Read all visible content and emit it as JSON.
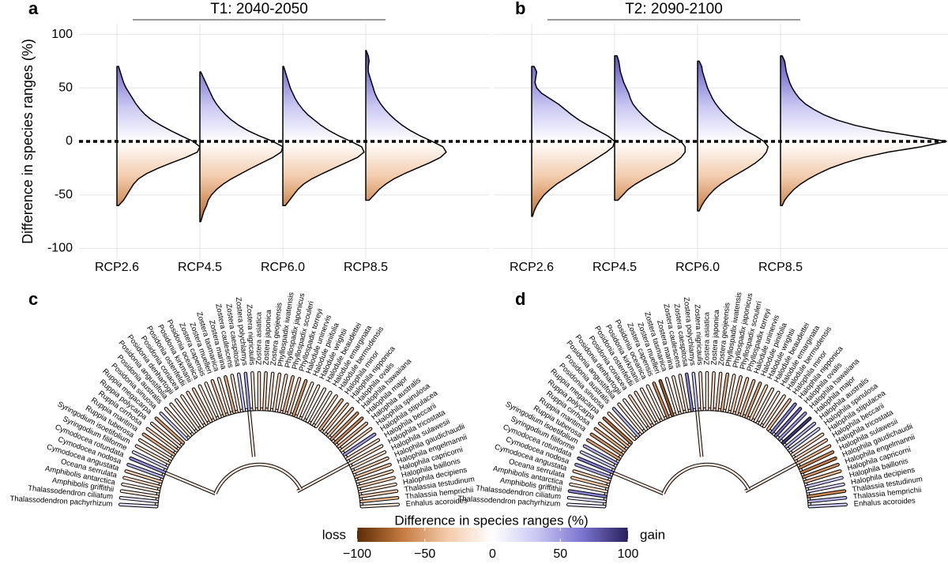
{
  "chart_data": [
    {
      "type": "violin",
      "label": "a",
      "title": "T1: 2040-2050",
      "ylabel": "Difference in species ranges (%)",
      "categories": [
        "RCP2.6",
        "RCP4.5",
        "RCP6.0",
        "RCP8.5"
      ],
      "ylim": [
        -110,
        110
      ],
      "yticks": [
        100,
        50,
        0,
        -50,
        -100
      ],
      "grid": true,
      "y": [
        -80,
        -75,
        -70,
        -65,
        -60,
        -55,
        -50,
        -45,
        -40,
        -35,
        -30,
        -25,
        -20,
        -15,
        -10,
        -5,
        0,
        5,
        10,
        15,
        20,
        25,
        30,
        35,
        40,
        45,
        50,
        55,
        60,
        65,
        70,
        75,
        80,
        85
      ],
      "densities": [
        [
          null,
          null,
          null,
          null,
          0.02,
          0.08,
          0.12,
          0.16,
          0.2,
          0.26,
          0.36,
          0.5,
          0.66,
          0.83,
          0.97,
          1.0,
          0.92,
          0.78,
          0.65,
          0.53,
          0.42,
          0.34,
          0.28,
          0.23,
          0.19,
          0.15,
          0.11,
          0.08,
          0.06,
          0.04,
          0.02,
          null,
          null,
          null
        ],
        [
          null,
          0.01,
          0.03,
          0.05,
          0.08,
          0.1,
          0.14,
          0.2,
          0.28,
          0.38,
          0.5,
          0.62,
          0.75,
          0.88,
          0.98,
          1.0,
          0.88,
          0.72,
          0.58,
          0.47,
          0.38,
          0.31,
          0.25,
          0.2,
          0.16,
          0.13,
          0.1,
          0.07,
          0.04,
          0.01,
          null,
          null,
          null,
          null
        ],
        [
          null,
          null,
          null,
          null,
          0.03,
          0.08,
          0.13,
          0.18,
          0.25,
          0.35,
          0.48,
          0.62,
          0.76,
          0.9,
          0.98,
          0.95,
          0.82,
          0.68,
          0.56,
          0.46,
          0.38,
          0.3,
          0.24,
          0.19,
          0.15,
          0.12,
          0.09,
          0.07,
          0.05,
          0.03,
          0.01,
          null,
          null,
          null
        ],
        [
          null,
          null,
          null,
          null,
          null,
          0.04,
          0.1,
          0.16,
          0.24,
          0.34,
          0.47,
          0.62,
          0.77,
          0.9,
          0.97,
          0.93,
          0.8,
          0.66,
          0.54,
          0.44,
          0.36,
          0.29,
          0.23,
          0.18,
          0.14,
          0.11,
          0.09,
          0.07,
          0.05,
          0.03,
          0.03,
          0.04,
          0.03,
          0.005
        ]
      ]
    },
    {
      "type": "violin",
      "label": "b",
      "title": "T2: 2090-2100",
      "categories": [
        "RCP2.6",
        "RCP4.5",
        "RCP6.0",
        "RCP8.5"
      ],
      "ylim": [
        -110,
        110
      ],
      "yticks": [
        100,
        50,
        0,
        -50,
        -100
      ],
      "grid": true,
      "y": [
        -80,
        -75,
        -70,
        -65,
        -60,
        -55,
        -50,
        -45,
        -40,
        -35,
        -30,
        -25,
        -20,
        -15,
        -10,
        -5,
        0,
        5,
        10,
        15,
        20,
        25,
        30,
        35,
        40,
        45,
        50,
        55,
        60,
        65,
        70,
        75,
        80,
        85
      ],
      "densities": [
        [
          null,
          null,
          0.01,
          0.03,
          0.06,
          0.1,
          0.15,
          0.22,
          0.3,
          0.4,
          0.5,
          0.6,
          0.7,
          0.8,
          0.9,
          0.98,
          1.0,
          0.92,
          0.8,
          0.68,
          0.57,
          0.48,
          0.4,
          0.32,
          0.22,
          0.12,
          0.06,
          0.04,
          0.05,
          0.06,
          0.03,
          null,
          null,
          null
        ],
        [
          null,
          null,
          null,
          null,
          null,
          0.04,
          0.1,
          0.16,
          0.25,
          0.36,
          0.48,
          0.6,
          0.72,
          0.8,
          0.85,
          0.85,
          0.8,
          0.7,
          0.58,
          0.48,
          0.4,
          0.33,
          0.27,
          0.22,
          0.19,
          0.17,
          0.14,
          0.11,
          0.09,
          0.07,
          0.06,
          0.05,
          0.03,
          null
        ],
        [
          null,
          null,
          null,
          0.02,
          0.05,
          0.09,
          0.14,
          0.2,
          0.28,
          0.38,
          0.49,
          0.6,
          0.7,
          0.78,
          0.83,
          0.85,
          0.8,
          0.7,
          0.58,
          0.48,
          0.4,
          0.33,
          0.27,
          0.22,
          0.18,
          0.15,
          0.12,
          0.1,
          0.08,
          0.06,
          0.05,
          0.02,
          null,
          null
        ],
        [
          null,
          null,
          null,
          null,
          0.02,
          0.05,
          0.1,
          0.16,
          0.24,
          0.34,
          0.46,
          0.6,
          0.78,
          1.0,
          1.3,
          1.7,
          2.0,
          1.6,
          1.2,
          0.9,
          0.68,
          0.52,
          0.4,
          0.3,
          0.23,
          0.18,
          0.14,
          0.11,
          0.09,
          0.07,
          0.06,
          0.05,
          0.02,
          null
        ]
      ]
    }
  ],
  "trees": {
    "species": [
      "Thalassodendron pachyrhizum",
      "Thalassodendron ciliatum",
      "Amphibolis griffithii",
      "Amphibolis antarctica",
      "Oceana serrulata",
      "Cymodocea angustata",
      "Cymodocea nodosa",
      "Cymodocea rotundata",
      "Syringodium filiforme",
      "Syringodium isoetifolium",
      "Ruppia tuberosa",
      "Ruppia maritima",
      "Ruppia cirrhosa",
      "Ruppia polycarpa",
      "Ruppia megacarpa",
      "Posidonia sinuosa",
      "Posidonia australis",
      "Posidonia angustifolia",
      "Posidonia denhartogii",
      "Posidonia coriacea",
      "Posidonia ostenfeldii",
      "Posidonia kirkmanii",
      "Posidonia oceanica",
      "Zostera capensis",
      "Zostera muelleri",
      "Zostera tasmanica",
      "Zostera marina",
      "Zostera caulescens",
      "Zostera caespitosa",
      "Zostera polychlamys",
      "Zostera nigricaulis",
      "Zostera asiatica",
      "Zostera japonica",
      "Zostera geojeensis",
      "Phyllospadix iwatensis",
      "Phyllospadix japonicus",
      "Phyllospadix scouleri",
      "Phyllospadix torreyi",
      "Halodule uninervis",
      "Halodule pinifolia",
      "Halodule wrightii",
      "Halodule beaudettei",
      "Halodule emarginata",
      "Halodule bermudensis",
      "Halophila minor",
      "Halophila nipponica",
      "Halophila ovalis",
      "Halophila hawaiiana",
      "Halophila major",
      "Halophila australis",
      "Halophila spinulosa",
      "Halophila stipulacea",
      "Halophila beccarii",
      "Halophila tricostata",
      "Halophila sulawesii",
      "Halophila gaudichaudii",
      "Halophila engelmannii",
      "Halophila capricorni",
      "Halophila baillonis",
      "Halophila decipiens",
      "Thalassia testudinum",
      "Thalassia hemprichii",
      "Enhalus acoroides"
    ],
    "panels": [
      {
        "label": "c",
        "values": [
          20,
          15,
          -15,
          -15,
          -25,
          -30,
          40,
          55,
          25,
          -20,
          -20,
          -45,
          -30,
          -25,
          -50,
          30,
          -20,
          -15,
          -20,
          -15,
          -25,
          -30,
          -20,
          -15,
          -35,
          -20,
          -45,
          -20,
          30,
          45,
          -15,
          -20,
          -30,
          -20,
          -25,
          -20,
          -40,
          -30,
          -55,
          -20,
          -15,
          -10,
          -15,
          -20,
          -45,
          -30,
          -40,
          -55,
          -60,
          -40,
          -30,
          50,
          -25,
          -20,
          -20,
          -30,
          -35,
          -25,
          -30,
          -20,
          -30,
          -40,
          -15
        ]
      },
      {
        "label": "d",
        "values": [
          15,
          20,
          60,
          -20,
          -35,
          -30,
          45,
          60,
          30,
          40,
          -50,
          -55,
          -45,
          -40,
          -70,
          -25,
          40,
          -20,
          -15,
          -30,
          -25,
          -20,
          -15,
          -60,
          -80,
          -15,
          -20,
          -25,
          60,
          30,
          -20,
          -15,
          -25,
          -30,
          -45,
          -20,
          -30,
          -35,
          -40,
          -50,
          -30,
          -20,
          -15,
          -25,
          -40,
          60,
          70,
          50,
          90,
          40,
          30,
          -25,
          -30,
          -40,
          -60,
          -65,
          -55,
          -40,
          30,
          25,
          -60,
          40,
          30
        ]
      }
    ]
  },
  "colorbar": {
    "title": "Difference in species ranges (%)",
    "low": "loss",
    "high": "gain",
    "lim": [
      -100,
      100
    ],
    "ticks": [
      {
        "value": -100,
        "label": "−100"
      },
      {
        "value": -50,
        "label": "−50"
      },
      0,
      50,
      100
    ],
    "colors": [
      "#5b2c06",
      "#c57a3f",
      "#f3cbab",
      "#ffffff",
      "#c9c6f2",
      "#7a74cf",
      "#27205a"
    ]
  }
}
